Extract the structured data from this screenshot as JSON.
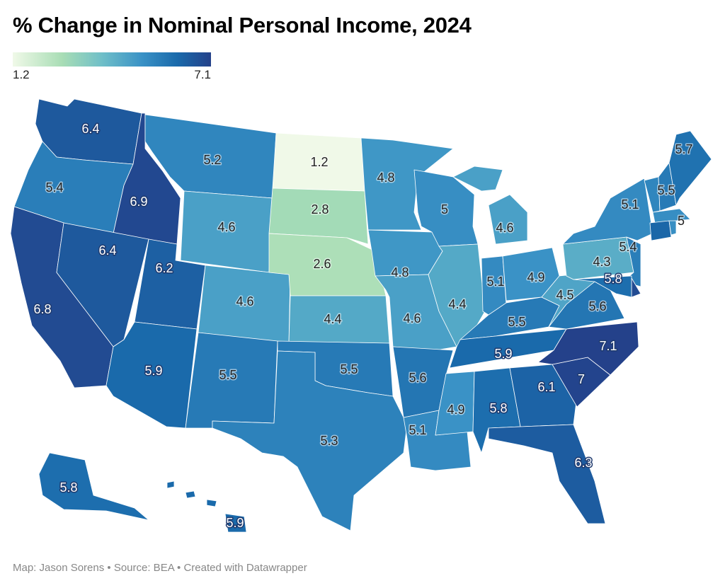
{
  "title": "% Change in Nominal Personal Income, 2024",
  "legend": {
    "min": "1.2",
    "max": "7.1",
    "colors": [
      "#f0f9e8",
      "#a8ddb5",
      "#6fbfc8",
      "#3a92c6",
      "#1a6aab",
      "#24418a"
    ]
  },
  "footer": "Map: Jason Sorens • Source: BEA • Created with Datawrapper",
  "map_data": {
    "type": "choropleth",
    "regions": {
      "WA": "6.4",
      "OR": "5.4",
      "CA": "6.8",
      "ID": "6.9",
      "NV": "6.4",
      "MT": "5.2",
      "WY": "4.6",
      "UT": "6.2",
      "AZ": "5.9",
      "CO": "4.6",
      "NM": "5.5",
      "ND": "1.2",
      "SD": "2.8",
      "NE": "2.6",
      "KS": "4.4",
      "OK": "5.5",
      "TX": "5.3",
      "MN": "4.8",
      "IA": "4.8",
      "MO": "4.6",
      "AR": "5.6",
      "LA": "5.1",
      "WI": "5",
      "IL": "4.4",
      "MI": "4.6",
      "IN": "5.1",
      "OH": "4.9",
      "KY": "5.5",
      "TN": "5.9",
      "MS": "4.9",
      "AL": "5.8",
      "GA": "6.1",
      "FL": "6.3",
      "SC": "7",
      "NC": "7.1",
      "VA": "5.6",
      "WV": "4.5",
      "PA": "4.3",
      "NY": "5.1",
      "NJ": "5.4",
      "MD": "5.8",
      "NH": "5.5",
      "ME": "5.7",
      "MA": "5",
      "AK": "5.8",
      "HI": "5.9"
    }
  }
}
